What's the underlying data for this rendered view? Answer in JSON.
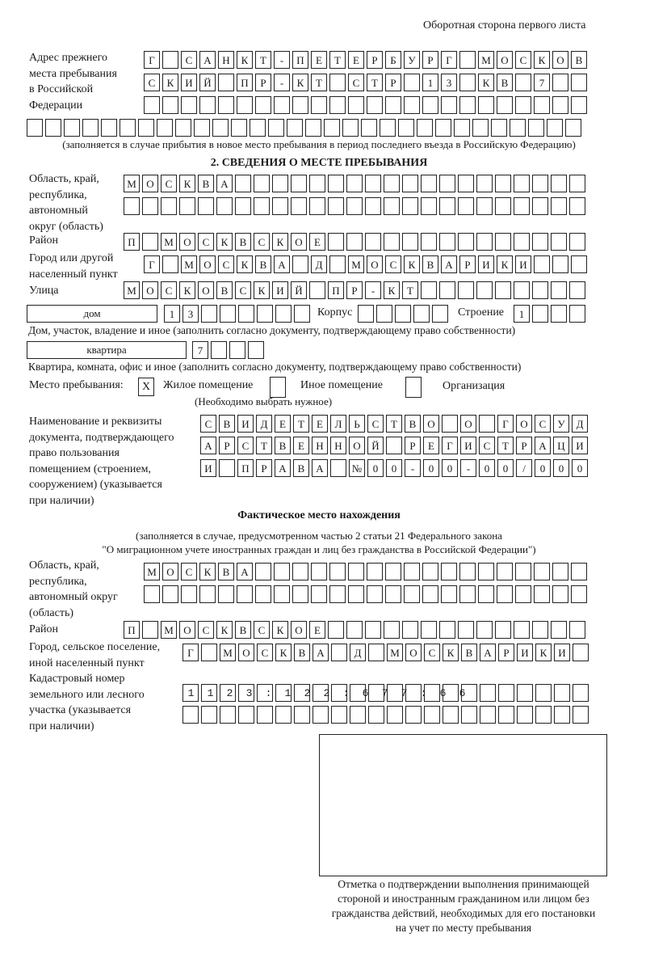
{
  "header": "Оборотная сторона первого листа",
  "prev_address": {
    "label": [
      "Адрес прежнего",
      "места пребывания",
      "в Российской",
      "Федерации"
    ],
    "rows": [
      "Г САНКТ-ПЕТЕРБУРГ МОСКОВ",
      "СКИЙ ПР-КТ СТР 13 КВ 7",
      "",
      ""
    ],
    "note": "(заполняется в случае прибытия в новое место пребывания в период последнего въезда в Российскую Федерацию)"
  },
  "section2": {
    "title": "2. СВЕДЕНИЯ О МЕСТЕ ПРЕБЫВАНИЯ",
    "region_label": [
      "Область, край,",
      "республика,",
      "автономный",
      "округ (область)"
    ],
    "region_rows": [
      "МОСКВА",
      ""
    ],
    "district_label": "Район",
    "district": "П МОСКВСКОЕ",
    "city_label": [
      "Город или другой",
      "населенный пункт"
    ],
    "city": "Г МОСКВА Д МОСКВАРИКИ",
    "street_label": "Улица",
    "street": "МОСКОВСКИЙ ПР-КТ",
    "house_type": "дом",
    "house": "13",
    "korpus_label": "Корпус",
    "korpus": "",
    "stroenie_label": "Строение",
    "stroenie": "1",
    "house_note": "Дом, участок, владение и иное (заполнить согласно документу, подтверждающему право собственности)",
    "flat_type": "квартира",
    "flat": "7",
    "flat_note": "Квартира, комната, офис и иное (заполнить согласно документу, подтверждающему право собственности)",
    "stay_place_label": "Место пребывания:",
    "options": [
      {
        "label": "Жилое помещение",
        "checked": true,
        "mark": "X"
      },
      {
        "label": "Иное помещение",
        "checked": false,
        "mark": ""
      },
      {
        "label": "Организация",
        "checked": false,
        "mark": ""
      }
    ],
    "choose_note": "(Необходимо выбрать нужное)",
    "doc_label": [
      "Наименование и реквизиты",
      "документа, подтверждающего",
      "право пользования",
      "помещением (строением,",
      "сооружением) (указывается",
      "при наличии)"
    ],
    "doc_rows": [
      "СВИДЕТЕЛЬСТВО О ГОСУД",
      "АРСТВЕННОЙ РЕГИСТРАЦИ",
      "И ПРАВА №00-00-00/000"
    ]
  },
  "actual": {
    "title": "Фактическое место нахождения",
    "note": [
      "(заполняется в случае, предусмотренном частью 2 статьи 21 Федерального закона",
      "\"О миграционном учете иностранных граждан и лиц без гражданства в Российской Федерации\")"
    ],
    "region_label": [
      "Область, край,",
      "республика,",
      "автономный округ",
      "(область)"
    ],
    "region_rows": [
      "МОСКВА",
      ""
    ],
    "district_label": "Район",
    "district": "П МОСКВСКОЕ",
    "city_label": [
      "Город, сельское поселение,",
      "иной населенный пункт"
    ],
    "city": "Г МОСКВА Д МОСКВАРИКИ",
    "cadastre_label": [
      "Кадастровый номер",
      "земельного или лесного",
      "участка (указывается",
      "при наличии)"
    ],
    "cadastre_rows": [
      "1123:122:677:66",
      ""
    ]
  },
  "stamp": {
    "caption": [
      "Отметка о подтверждении выполнения принимающей",
      "стороной и иностранным гражданином или лицом без",
      "гражданства действий, необходимых для его постановки",
      "на учет по месту пребывания"
    ]
  }
}
